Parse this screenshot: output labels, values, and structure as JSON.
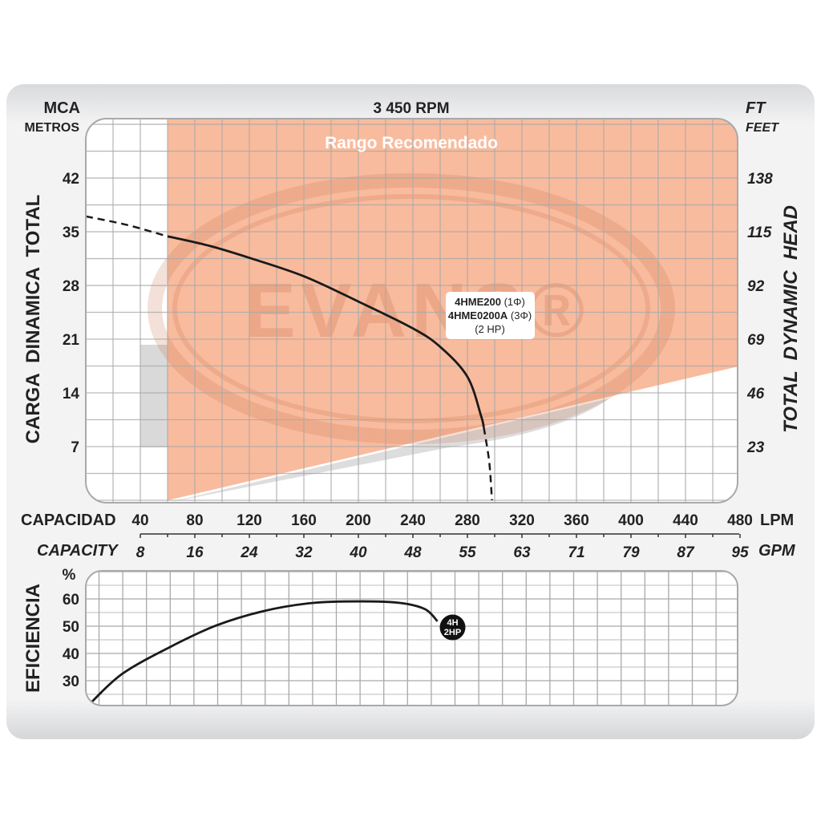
{
  "chart_data": [
    {
      "type": "line",
      "title": "3 450 RPM",
      "ylabel_left": "CARGA  DINAMICA  TOTAL",
      "ylabel_left_unit_top": "MCA",
      "ylabel_left_unit_bottom": "METROS",
      "ylabel_right": "TOTAL  DYNAMIC  HEAD",
      "ylabel_right_unit_top": "FT",
      "ylabel_right_unit_bottom": "FEET",
      "xlabel": "CAPACIDAD",
      "xlabel_unit": "LPM",
      "xlabel2": "CAPACITY",
      "xlabel2_unit": "GPM",
      "xlim": [
        0,
        480
      ],
      "ylim": [
        0,
        49.7
      ],
      "grid": true,
      "x_ticks": [
        "40",
        "80",
        "120",
        "160",
        "200",
        "240",
        "280",
        "320",
        "360",
        "400",
        "440",
        "480"
      ],
      "x_tick_values": [
        40,
        80,
        120,
        160,
        200,
        240,
        280,
        320,
        360,
        400,
        440,
        480
      ],
      "x2_ticks": [
        "8",
        "16",
        "24",
        "32",
        "40",
        "48",
        "55",
        "63",
        "71",
        "79",
        "87",
        "95"
      ],
      "y_ticks": [
        "42",
        "35",
        "28",
        "21",
        "14",
        "7"
      ],
      "y_tick_values": [
        42,
        35,
        28,
        21,
        14,
        7
      ],
      "y_right_ticks": [
        "138",
        "115",
        "92",
        "69",
        "46",
        "23"
      ],
      "recommended_range": {
        "label": "Rango Recomendado",
        "color": "#f9bb9d",
        "x_start": 60,
        "lower_boundary": [
          [
            60,
            0
          ],
          [
            480,
            17.5
          ]
        ]
      },
      "watermark": "EVANS®",
      "series": [
        {
          "name": "4HME200 (1Φ) / 4HME0200A (3Φ) (2 HP)",
          "color": "#1a1a1a",
          "dashed_start": [
            [
              0,
              37.0
            ],
            [
              30,
              35.9
            ],
            [
              60,
              34.4
            ]
          ],
          "solid": [
            [
              60,
              34.4
            ],
            [
              90,
              33.2
            ],
            [
              120,
              31.6
            ],
            [
              160,
              29.2
            ],
            [
              200,
              25.9
            ],
            [
              240,
              22.4
            ],
            [
              260,
              20.0
            ],
            [
              280,
              16.1
            ],
            [
              290,
              11.0
            ],
            [
              292,
              9.5
            ]
          ],
          "dashed_end": [
            [
              292,
              9.5
            ],
            [
              296,
              5
            ],
            [
              298,
              0
            ]
          ]
        }
      ],
      "annotation": {
        "line1_bold": "4HME200",
        "line1_rest": " (1Φ)",
        "line2_bold": "4HME0200A",
        "line2_rest": " (3Φ)",
        "line3": "(2 HP)"
      }
    },
    {
      "type": "line",
      "ylabel": "EFICIENCIA",
      "y_unit": "%",
      "xlim": [
        0,
        480
      ],
      "ylim": [
        21,
        70
      ],
      "grid": true,
      "y_ticks": [
        "60",
        "50",
        "40",
        "30"
      ],
      "y_tick_values": [
        60,
        50,
        40,
        30
      ],
      "series": [
        {
          "name": "4H 2HP",
          "color": "#1a1a1a",
          "points": [
            [
              3.5,
              21.8
            ],
            [
              27,
              32.6
            ],
            [
              62,
              42.4
            ],
            [
              96,
              50.3
            ],
            [
              131,
              55.6
            ],
            [
              166,
              58.5
            ],
            [
              202,
              59.1
            ],
            [
              231,
              58.5
            ],
            [
              249,
              56.2
            ],
            [
              258,
              51.8
            ]
          ]
        }
      ],
      "marker": {
        "line1": "4H",
        "line2": "2HP",
        "x": 265,
        "y": 49.4
      }
    }
  ]
}
